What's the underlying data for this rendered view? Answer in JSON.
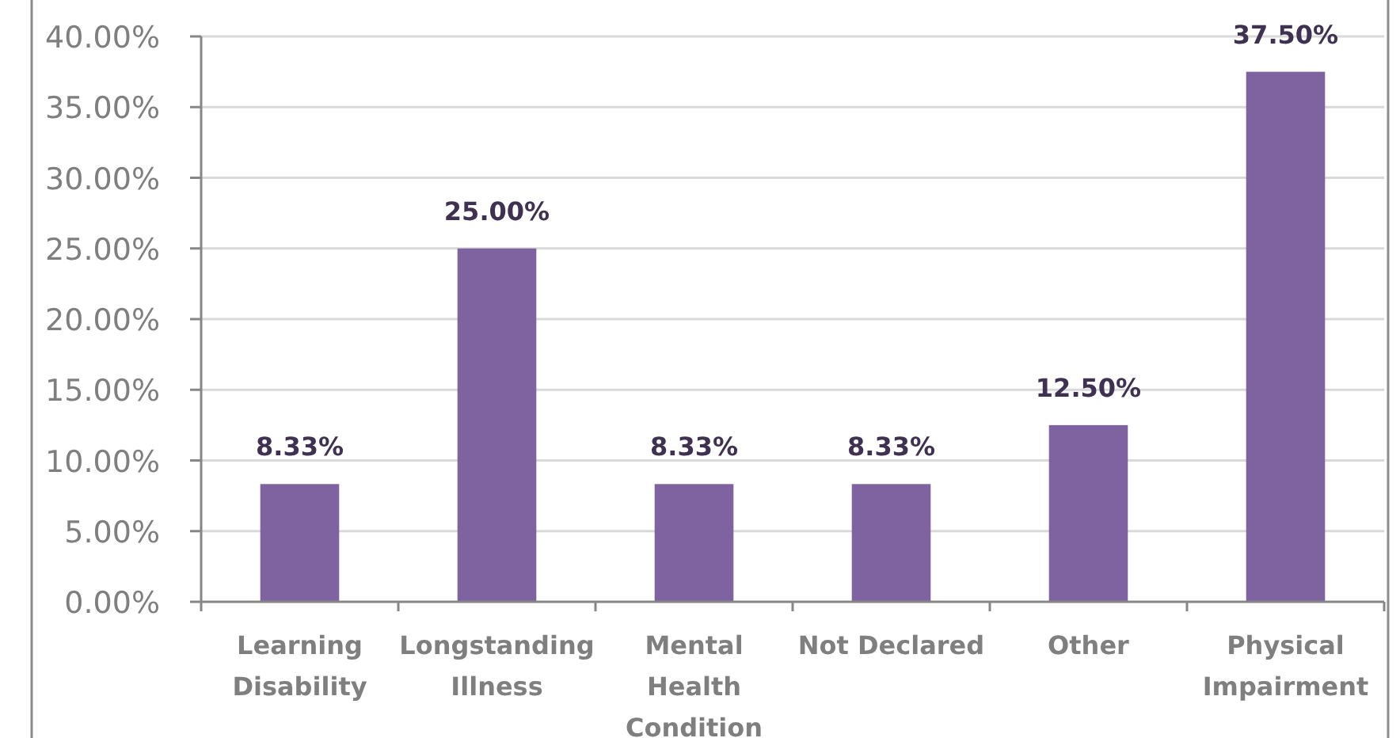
{
  "chart_data": {
    "type": "bar",
    "categories": [
      "Learning Disability",
      "Longstanding Illness",
      "Mental Health Condition",
      "Not Declared",
      "Other",
      "Physical Impairment"
    ],
    "values": [
      8.33,
      25,
      8.33,
      8.33,
      12.5,
      37.5
    ],
    "value_labels": [
      "8.33%",
      "25.00%",
      "8.33%",
      "8.33%",
      "12.50%",
      "37.50%"
    ],
    "color": "#7f63a1",
    "ylim": [
      0,
      40
    ],
    "yticks": [
      {
        "value": 0,
        "label": "0.00%"
      },
      {
        "value": 5,
        "label": "5.00%"
      },
      {
        "value": 10,
        "label": "10.00%"
      },
      {
        "value": 15,
        "label": "15.00%"
      },
      {
        "value": 20,
        "label": "20.00%"
      },
      {
        "value": 25,
        "label": "25.00%"
      },
      {
        "value": 30,
        "label": "30.00%"
      },
      {
        "value": 35,
        "label": "35.00%"
      },
      {
        "value": 40,
        "label": "40.00%"
      }
    ],
    "grid": "y"
  }
}
